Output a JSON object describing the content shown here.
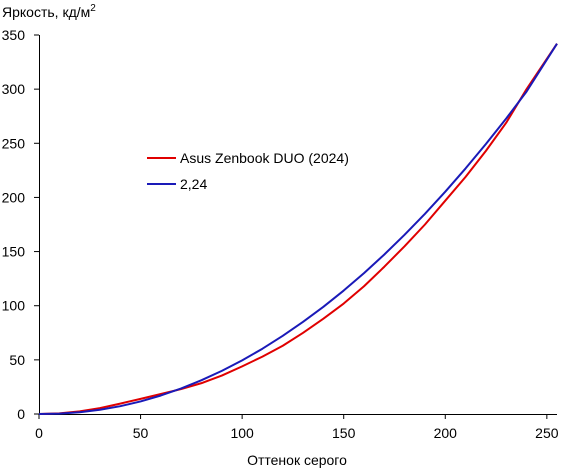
{
  "chart_data": {
    "type": "line",
    "ylabel": "Яркость, кд/м",
    "ylabel_sup": "2",
    "xlabel": "Оттенок серого",
    "xlim": [
      0,
      255
    ],
    "ylim": [
      0,
      350
    ],
    "xticks": [
      0,
      50,
      100,
      150,
      200,
      250
    ],
    "yticks": [
      0,
      50,
      100,
      150,
      200,
      250,
      300,
      350
    ],
    "grid": false,
    "legend_position": "upper-left-center",
    "series": [
      {
        "name": "Asus Zenbook DUO (2024)",
        "color": "#e00000",
        "x": [
          0,
          10,
          20,
          30,
          40,
          50,
          60,
          70,
          80,
          90,
          100,
          110,
          120,
          130,
          140,
          150,
          160,
          170,
          180,
          190,
          200,
          210,
          220,
          230,
          240,
          255
        ],
        "y": [
          0,
          0.6,
          2.4,
          5.4,
          9.6,
          14,
          18.5,
          23,
          28.5,
          35.5,
          44,
          53,
          63,
          75,
          88,
          102,
          118,
          136,
          155,
          175,
          197,
          219,
          243,
          269,
          300,
          342
        ]
      },
      {
        "name": "2,24",
        "color": "#1a1ab8",
        "x": [
          0,
          10,
          20,
          30,
          40,
          50,
          60,
          70,
          80,
          90,
          100,
          110,
          120,
          130,
          140,
          150,
          160,
          170,
          180,
          190,
          200,
          210,
          220,
          230,
          240,
          255
        ],
        "y": [
          0,
          0.3,
          1.6,
          3.9,
          7.2,
          11.6,
          17.1,
          23.6,
          31.2,
          39.8,
          49.5,
          60.3,
          72.2,
          85.1,
          99.0,
          114.0,
          130.1,
          147.3,
          165.6,
          184.9,
          205.3,
          226.8,
          249.3,
          272.9,
          297.7,
          342.0
        ]
      }
    ]
  }
}
